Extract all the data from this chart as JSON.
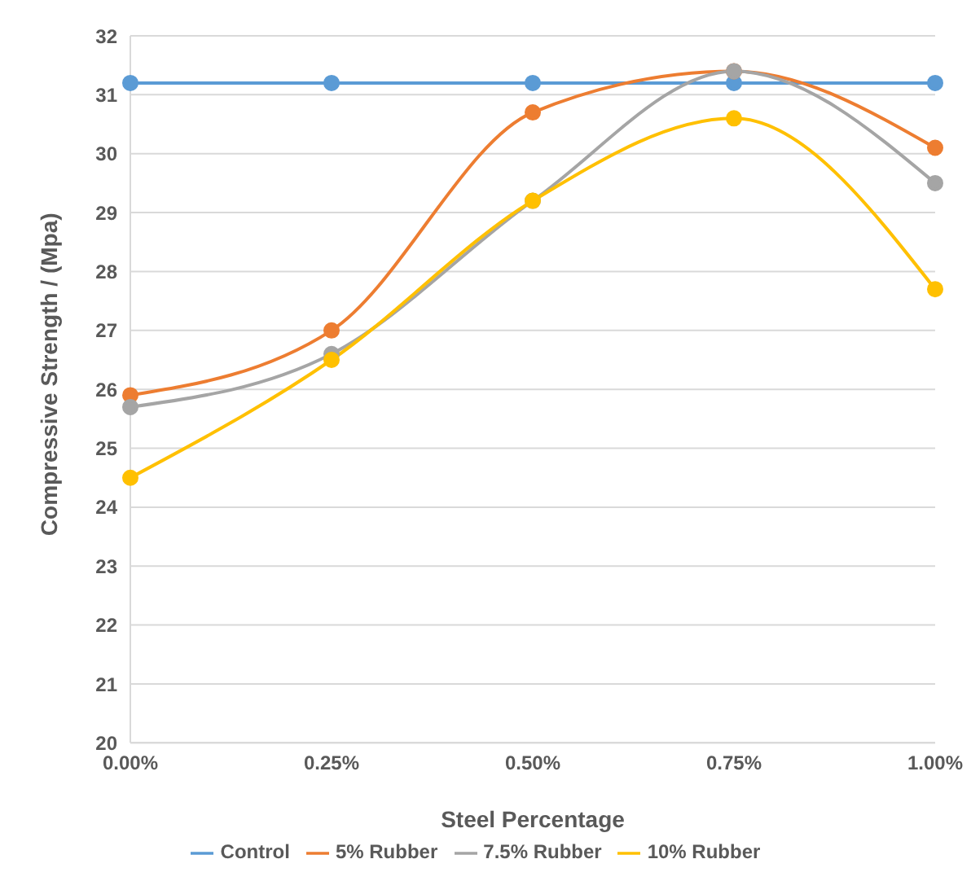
{
  "chart_data": {
    "type": "line",
    "xlabel": "Steel Percentage",
    "ylabel": "Compressive Strength / (Mpa)",
    "categories": [
      "0.00%",
      "0.25%",
      "0.50%",
      "0.75%",
      "1.00%"
    ],
    "series": [
      {
        "name": "Control",
        "color": "#5b9bd5",
        "values": [
          31.2,
          31.2,
          31.2,
          31.2,
          31.2
        ]
      },
      {
        "name": "5% Rubber",
        "color": "#ed7d31",
        "values": [
          25.9,
          27.0,
          30.7,
          31.4,
          30.1
        ]
      },
      {
        "name": "7.5% Rubber",
        "color": "#a5a5a5",
        "values": [
          25.7,
          26.6,
          29.2,
          31.4,
          29.5
        ]
      },
      {
        "name": "10% Rubber",
        "color": "#ffc000",
        "values": [
          24.5,
          26.5,
          29.2,
          30.6,
          27.7
        ]
      }
    ],
    "ylim": [
      20,
      32
    ],
    "yticks": [
      20,
      21,
      22,
      23,
      24,
      25,
      26,
      27,
      28,
      29,
      30,
      31,
      32
    ],
    "grid": "y",
    "legend": "bottom",
    "marker": "circle"
  }
}
